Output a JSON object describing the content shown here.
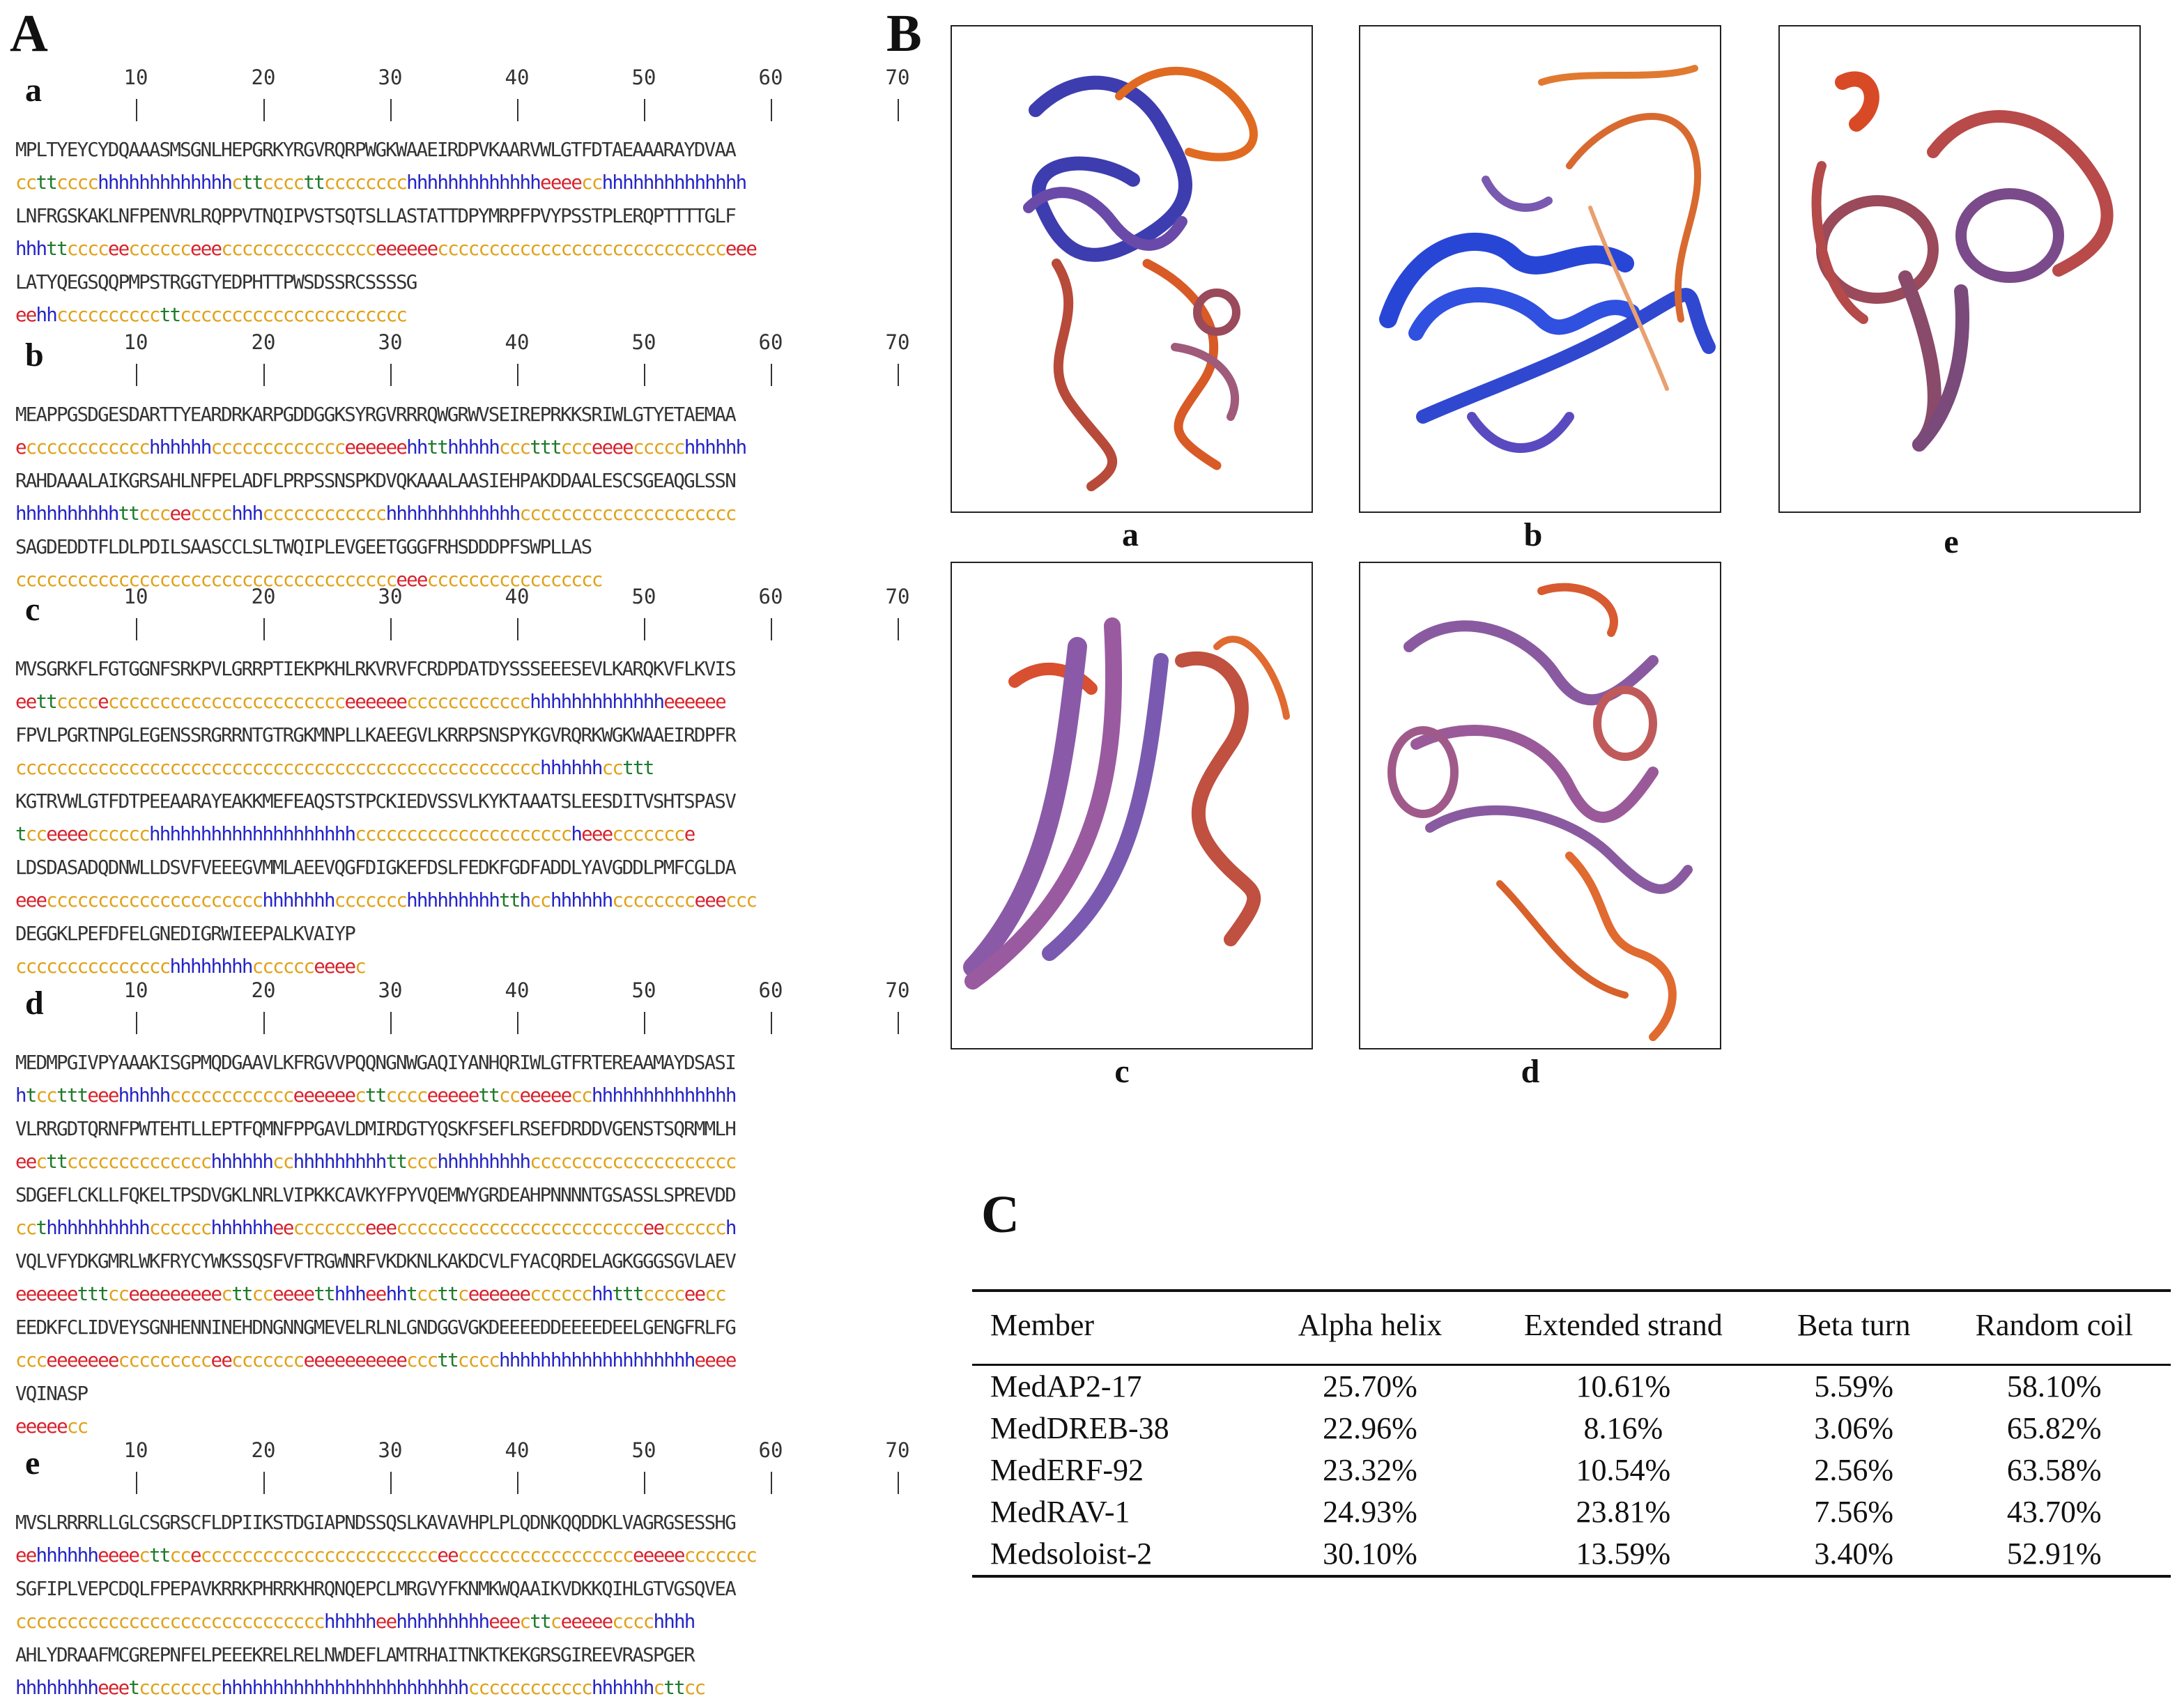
{
  "panels": {
    "A": "A",
    "B": "B",
    "C": "C"
  },
  "ruler_labels": [
    "10",
    "20",
    "30",
    "40",
    "50",
    "60",
    "70"
  ],
  "sequences": [
    {
      "label": "a",
      "lines": [
        {
          "seq": "MPLTYEYCYDQAAASMSGNLHEPGRKYRGVRQRPWGKWAAEIRDPVKAARVWLGTFDTAEAAARAYDVAA",
          "ss": "ccttcccchhhhhhhhhhhhhcttccccttcccccccchhhhhhhhhhhhheeeecchhhhhhhhhhhhhh"
        },
        {
          "seq": "LNFRGSKAKLNFPENVRLRQPPVTNQIPVSTSQTSLLASTATTDPYMRPFPVYPSSTPLERQPTTTTGLF",
          "ss": "hhhttcccceecccccceeeccccccccccccccceeeeeecccccccccccccccccccccccccccceee"
        },
        {
          "seq": "LATYQEGSQQPMPSTRGGTYEDPHTTPWSDSSRCSSSSG",
          "ss": "eehhccccccccccttcccccccccccccccccccccc"
        }
      ]
    },
    {
      "label": "b",
      "lines": [
        {
          "seq": "MEAPPGSDGESDARTTYEARDRKARPGDDGGKSYRGVRRRQWGRWVSEIREPRKKSRIWLGTYETAEMAA",
          "ss": "ecccccccccccchhhhhhccccccccccccceeeeeehhtthhhhhccctttccceeeeccccchhhhhh"
        },
        {
          "seq": "RAHDAAALAIKGRSAHLNFPELADFLPRPSSNSPKDVQKAAALAASIEHPAKDDAALESCSGEAQGLSSN",
          "ss": "hhhhhhhhhhttccceecccchhhcccccccccccchhhhhhhhhhhhhccccccccccccccccccccc"
        },
        {
          "seq": "SAGDEDDTFLDLPDILSAASCCLSLTWQIPLEVGEETGGGFRHSDDDPFSWPLLAS",
          "ss": "ccccccccccccccccccccccccccccccccccccceeeccccccccccccccccc"
        }
      ]
    },
    {
      "label": "c",
      "lines": [
        {
          "seq": "MVSGRKFLFGTGGNFSRKPVLGRRPTIEKPKHLRKVRVFCRDPDATDYSSSEEESEVLKARQKVFLKVIS",
          "ss": "eettcccceccccccccccccccccccccccceeeeeecccccccccccchhhhhhhhhhhhheeeeee"
        },
        {
          "seq": "FPVLPGRTNPGLEGENSSRGRRNTGTRGKMNPLLKAEEGVLKRRPSNSPYKGVRQRKWGKWAAEIRDPFR",
          "ss": "ccccccccccccccccccccccccccccccccccccccccccccccccccchhhhhhccttt"
        },
        {
          "seq": "KGTRVWLGTFDTPEEAARAYEAKKMEFEAQSTSTPCKIEDVSSVLKYKTAAATSLEESDITVSHTSPASV",
          "ss": "tcceeeecccccchhhhhhhhhhhhhhhhhhhhcccccccccccccccccccccheeeccccccce"
        },
        {
          "seq": "LDSDASADQDNWLLDSVFVEEEGVMMLAEEVQGFDIGKEFDSLFEDKFGDFADDLYAVGDDLPMFCGLDA",
          "ss": "eeeccccccccccccccccccccchhhhhhhccccccchhhhhhhhhtthcchhhhhhcccccccceeeccc"
        },
        {
          "seq": "DEGGKLPEFDFELGNEDIGRWIEEPALKVAIYP",
          "ss": "ccccccccccccccchhhhhhhhcccccceeeec"
        }
      ]
    },
    {
      "label": "d",
      "lines": [
        {
          "seq": "MEDMPGIVPYAAAKISGPMQDGAAVLKFRGVVPQQNGNWGAQIYANHQRIWLGTFRTEREAAMAYDSASI",
          "ss": "htccttteeehhhhhcccccccccccceeeeeecttcccceeeeettcceeeeecchhhhhhhhhhhhhh"
        },
        {
          "seq": "VLRRGDTQRNFPWTEHTLLEPTFQMNFPPGAVLDMIRDGTYQSKFSEFLRSEFDRDDVGENSTSQRMMLH",
          "ss": "eecttcccccccccccccchhhhhhcchhhhhhhhhttccchhhhhhhhhcccccccccccccccccccc"
        },
        {
          "seq": "SDGEFLCKLLFQKELTPSDVGKLNRLVIPKKCAVKYFPYVQEMWYGRDEAHPNNNNTGSASSLSPREVDD",
          "ss": "ccthhhhhhhhhhcccccchhhhhheeccccccceeecccccccccccccccccccccccceecccccch"
        },
        {
          "seq": "VQLVFYDKGMRLWKFRYCYWKSSQSFVFTRGWNRFVKDKNLKAKDCVLFYACQRDELAGKGGGSGVLAEV",
          "ss": "eeeeeetttcceeeeeeeeecttcceeeetthhheehhtccttceeeeeecccccchhtttcccceecc"
        },
        {
          "seq": "EEDKFCLIDVEYSGNHENNINEHDNGNNGMEVELRLNLGNDGGVGKDEEEEDDEEEEDEELGENGFRLFG",
          "ss": "ccceeeeeeeccccccccceeccccccceeeeeeeeeecccttcccchhhhhhhhhhhhhhhhhhheeee"
        },
        {
          "seq": "VQINASP",
          "ss": "eeeeecc"
        }
      ]
    },
    {
      "label": "e",
      "lines": [
        {
          "seq": "MVSLRRRRLLGLCSGRSCFLDPIIKSTDGIAPNDSSQSLKAVAVHPLPLQDNKQQDDKLVAGRGSESSHG",
          "ss": "eehhhhhheeeecttcceccccccccccccccccccccccceeccccccccccccccccceeeeeccccccc"
        },
        {
          "seq": "SGFIPLVEPCDQLFPEPAVKRRKPHRRKHRQNQEPCLMRGVYFKNMKWQAAIKVDKKQIHLGTVGSQVEA",
          "ss": "cccccccccccccccccccccccccccccchhhhheehhhhhhhhheeecttceeeeecccchhhh"
        },
        {
          "seq": "AHLYDRAAFMCGREPNFELPEEEKRELRELNWDEFLAMTRHAITNKTKEKGRSGIREEVRASPGER",
          "ss": "hhhhhhhheeetcccccccchhhhhhhhhhhhhhhhhhhhhhhhcccccccccccchhhhhhcttcc"
        }
      ]
    }
  ],
  "structures": [
    "a",
    "b",
    "c",
    "d",
    "e"
  ],
  "table": {
    "headers": [
      "Member",
      "Alpha helix",
      "Extended strand",
      "Beta turn",
      "Random coil"
    ],
    "rows": [
      [
        "MedAP2-17",
        "25.70%",
        "10.61%",
        "5.59%",
        "58.10%"
      ],
      [
        "MedDREB-38",
        "22.96%",
        "8.16%",
        "3.06%",
        "65.82%"
      ],
      [
        "MedERF-92",
        "23.32%",
        "10.54%",
        "2.56%",
        "63.58%"
      ],
      [
        "MedRAV-1",
        "24.93%",
        "23.81%",
        "7.56%",
        "43.70%"
      ],
      [
        "Medsoloist-2",
        "30.10%",
        "13.59%",
        "3.40%",
        "52.91%"
      ]
    ]
  },
  "colors": {
    "coil": "#e0a21a",
    "helix": "#2424c8",
    "strand": "#d8222c",
    "turn": "#1e7a2a"
  }
}
